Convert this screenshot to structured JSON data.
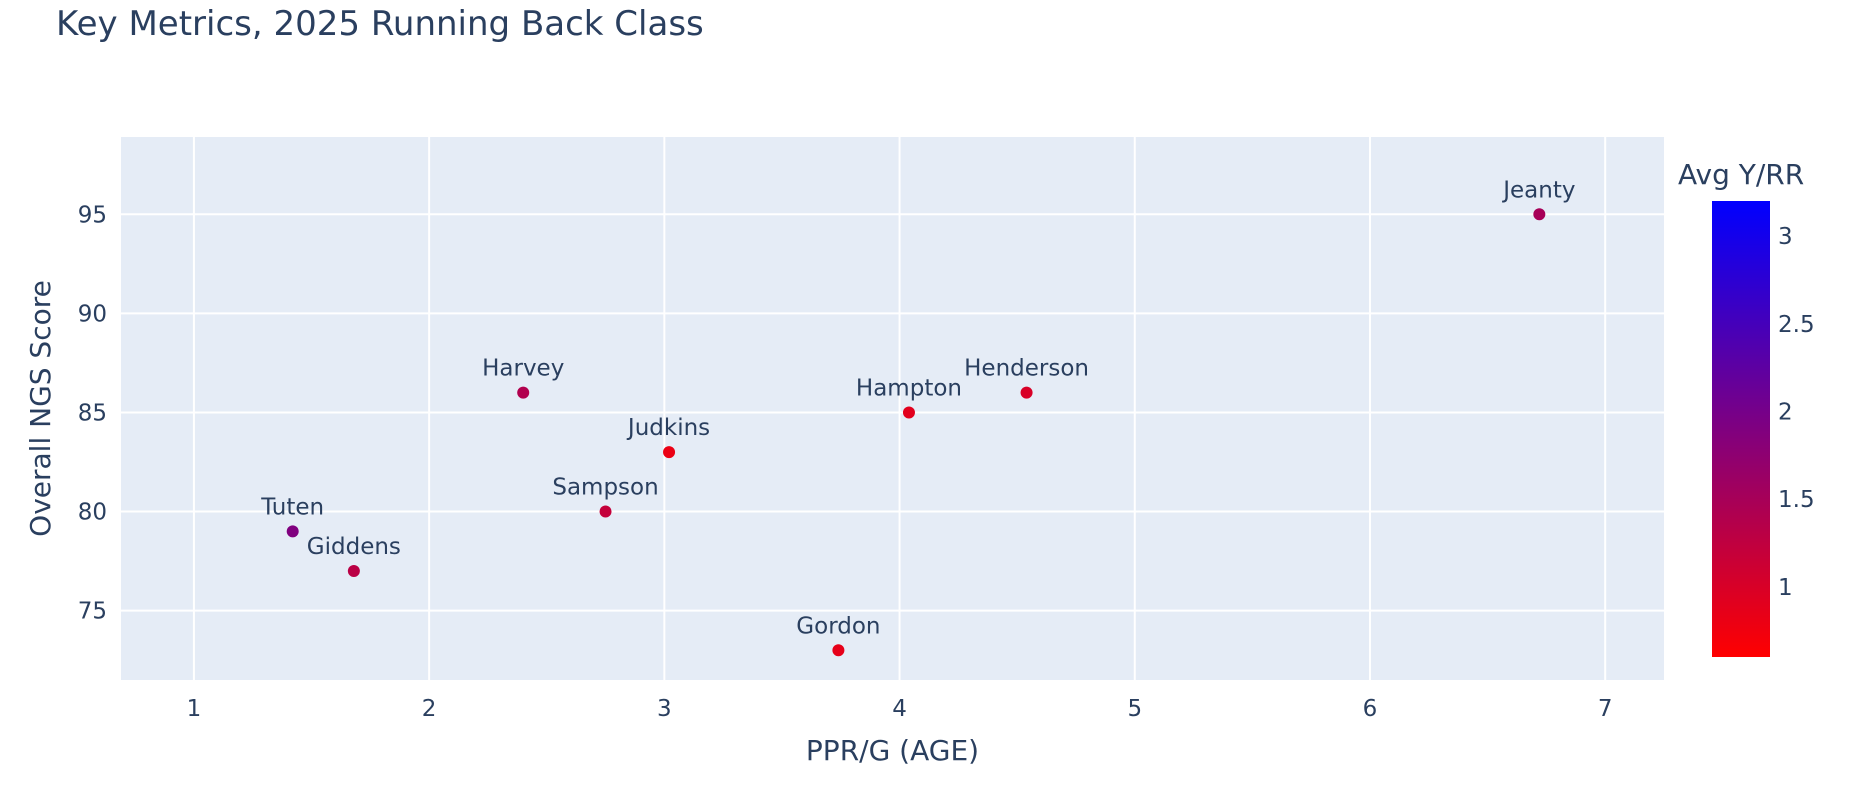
{
  "chart_data": {
    "type": "scatter",
    "title": "Key Metrics, 2025 Running Back Class",
    "xlabel": "PPR/G (AGE)",
    "ylabel": "Overall NGS Score",
    "xlim": [
      0.69,
      7.25
    ],
    "ylim": [
      71.5,
      98.9
    ],
    "x_ticks": [
      1,
      2,
      3,
      4,
      5,
      6,
      7
    ],
    "y_ticks": [
      75,
      80,
      85,
      90,
      95
    ],
    "grid": true,
    "colorbar": {
      "title": "Avg Y/RR",
      "range": [
        0.6,
        3.2
      ],
      "ticks": [
        1,
        1.5,
        2,
        2.5,
        3
      ],
      "tick_labels": [
        "1",
        "1.5",
        "2",
        "2.5",
        "3"
      ],
      "color_low": "#ff0000",
      "color_high": "#0000ff"
    },
    "points": [
      {
        "name": "Jeanty",
        "x": 6.72,
        "y": 95,
        "color_value": 1.5
      },
      {
        "name": "Henderson",
        "x": 4.54,
        "y": 86,
        "color_value": 1.0
      },
      {
        "name": "Hampton",
        "x": 4.04,
        "y": 85,
        "color_value": 0.9
      },
      {
        "name": "Harvey",
        "x": 2.4,
        "y": 86,
        "color_value": 1.4
      },
      {
        "name": "Judkins",
        "x": 3.02,
        "y": 83,
        "color_value": 0.8
      },
      {
        "name": "Sampson",
        "x": 2.75,
        "y": 80,
        "color_value": 1.2
      },
      {
        "name": "Tuten",
        "x": 1.42,
        "y": 79,
        "color_value": 1.9
      },
      {
        "name": "Giddens",
        "x": 1.68,
        "y": 77,
        "color_value": 1.3
      },
      {
        "name": "Gordon",
        "x": 3.74,
        "y": 73,
        "color_value": 0.85
      }
    ]
  }
}
